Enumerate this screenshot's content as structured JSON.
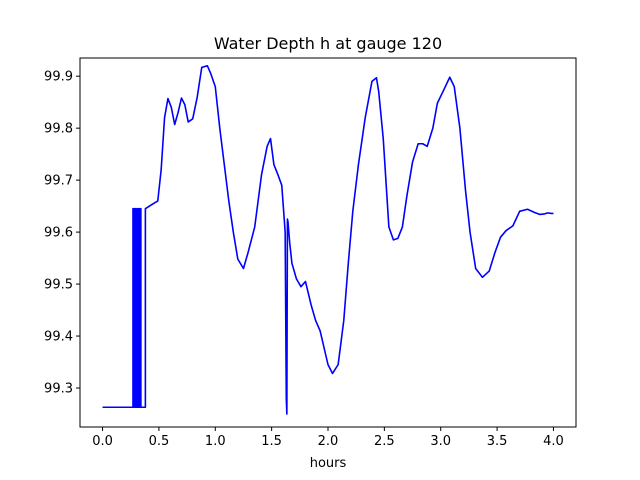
{
  "chart_data": {
    "type": "line",
    "title": "Water Depth h at gauge 120",
    "xlabel": "hours",
    "ylabel": "",
    "xlim": [
      -0.2,
      4.2
    ],
    "ylim": [
      99.225,
      99.935
    ],
    "xticks": [
      "0.0",
      "0.5",
      "1.0",
      "1.5",
      "2.0",
      "2.5",
      "3.0",
      "3.5",
      "4.0"
    ],
    "yticks": [
      "99.3",
      "99.4",
      "99.5",
      "99.6",
      "99.7",
      "99.8",
      "99.9"
    ],
    "grid": false,
    "series": [
      {
        "color": "#0000ff",
        "x": [
          0.0,
          0.27,
          0.27,
          0.28,
          0.28,
          0.29,
          0.29,
          0.3,
          0.3,
          0.31,
          0.31,
          0.32,
          0.32,
          0.33,
          0.33,
          0.34,
          0.34,
          0.38,
          0.38,
          0.43,
          0.49,
          0.52,
          0.55,
          0.58,
          0.61,
          0.64,
          0.67,
          0.7,
          0.73,
          0.76,
          0.8,
          0.84,
          0.88,
          0.93,
          0.96,
          1.0,
          1.04,
          1.08,
          1.12,
          1.16,
          1.2,
          1.25,
          1.29,
          1.35,
          1.41,
          1.46,
          1.49,
          1.52,
          1.56,
          1.59,
          1.62,
          1.63,
          1.635,
          1.64,
          1.64,
          1.645,
          1.66,
          1.68,
          1.72,
          1.76,
          1.8,
          1.85,
          1.89,
          1.93,
          2.0,
          2.04,
          2.09,
          2.14,
          2.18,
          2.22,
          2.27,
          2.33,
          2.39,
          2.43,
          2.45,
          2.49,
          2.54,
          2.58,
          2.62,
          2.66,
          2.7,
          2.75,
          2.8,
          2.84,
          2.88,
          2.93,
          2.97,
          3.03,
          3.08,
          3.12,
          3.17,
          3.22,
          3.26,
          3.31,
          3.37,
          3.43,
          3.48,
          3.53,
          3.58,
          3.64,
          3.7,
          3.77,
          3.83,
          3.88,
          3.92,
          3.95,
          3.98,
          4.0
        ],
        "y": [
          99.263,
          99.263,
          99.645,
          99.645,
          99.263,
          99.263,
          99.645,
          99.645,
          99.263,
          99.263,
          99.645,
          99.645,
          99.263,
          99.263,
          99.645,
          99.645,
          99.263,
          99.263,
          99.645,
          99.652,
          99.66,
          99.72,
          99.82,
          99.857,
          99.84,
          99.807,
          99.83,
          99.858,
          99.845,
          99.812,
          99.818,
          99.86,
          99.917,
          99.92,
          99.905,
          99.88,
          99.8,
          99.73,
          99.66,
          99.6,
          99.548,
          99.53,
          99.56,
          99.61,
          99.71,
          99.765,
          99.78,
          99.73,
          99.708,
          99.69,
          99.6,
          99.28,
          99.25,
          99.62,
          99.625,
          99.62,
          99.58,
          99.54,
          99.51,
          99.495,
          99.505,
          99.46,
          99.43,
          99.41,
          99.345,
          99.328,
          99.345,
          99.43,
          99.54,
          99.64,
          99.73,
          99.82,
          99.89,
          99.897,
          99.87,
          99.78,
          99.61,
          99.585,
          99.588,
          99.61,
          99.67,
          99.735,
          99.77,
          99.77,
          99.765,
          99.8,
          99.848,
          99.875,
          99.898,
          99.88,
          99.8,
          99.68,
          99.6,
          99.53,
          99.513,
          99.525,
          99.56,
          99.59,
          99.603,
          99.612,
          99.64,
          99.644,
          99.638,
          99.634,
          99.635,
          99.637,
          99.636,
          99.636
        ]
      }
    ]
  }
}
